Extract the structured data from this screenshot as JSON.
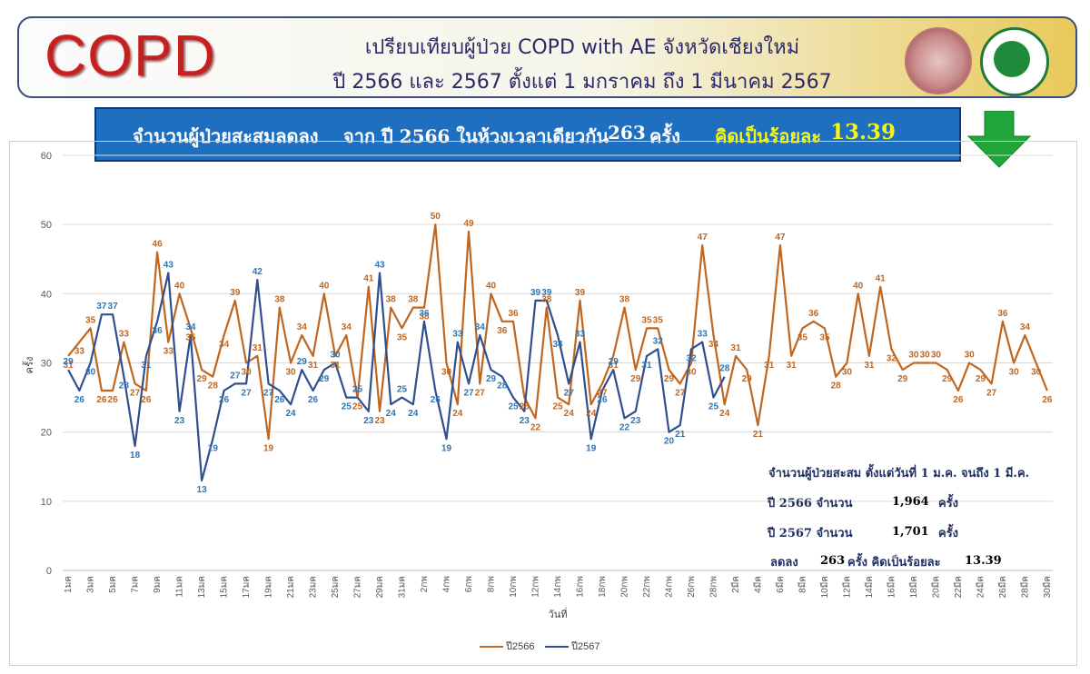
{
  "header": {
    "logo_text": "COPD",
    "title_line1": "เปรียบเทียบผู้ป่วย COPD with AE จังหวัดเชียงใหม่",
    "title_line2": "ปี 2566 และ 2567 ตั้งแต่ 1 มกราคม ถึง 1 มีนาคม 2567",
    "logo1_icon": "provincial-seal-icon",
    "logo2_icon": "ministry-of-public-health-icon"
  },
  "banner": {
    "part1": "จำนวนผู้ป่วยสะสมลดลง",
    "part2": "จาก ปี 2566 ในห้วงเวลาเดียวกัน",
    "count": "263",
    "unit": "ครั้ง",
    "part3": "คิดเป็นร้อยละ",
    "percent": "13.39",
    "arrow_icon": "green-down-arrow-icon",
    "arrow_color": "#1fa53a"
  },
  "summary": {
    "heading": "จำนวนผู้ป่วยสะสม ตั้งแต่วันที่ 1 ม.ค. จนถึง 1 มี.ค.",
    "row1_label": "ปี 2566 จำนวน",
    "row1_value": "1,964",
    "row1_unit": "ครั้ง",
    "row2_label": "ปี 2567 จำนวน",
    "row2_value": "1,701",
    "row2_unit": "ครั้ง",
    "row3_label": "ลดลง",
    "row3_value": "263",
    "row3_text": "ครั้ง คิดเป็นร้อยละ",
    "row3_percent": "13.39"
  },
  "chart_data": {
    "type": "line",
    "xlabel": "วันที่",
    "ylabel": "ครั้ง",
    "ylim": [
      0,
      60
    ],
    "yticks": [
      0,
      10,
      20,
      30,
      40,
      50,
      60
    ],
    "grid": true,
    "legend_position": "bottom",
    "tick_labels": [
      "1มค",
      "3มค",
      "5มค",
      "7มค",
      "9มค",
      "11มค",
      "13มค",
      "15มค",
      "17มค",
      "19มค",
      "21มค",
      "23มค",
      "25มค",
      "27มค",
      "29มค",
      "31มค",
      "2กพ",
      "4กพ",
      "6กพ",
      "8กพ",
      "10กพ",
      "12กพ",
      "14กพ",
      "16กพ",
      "18กพ",
      "20กพ",
      "22กพ",
      "24กพ",
      "26กพ",
      "28กพ",
      "2มีค",
      "4มีค",
      "6มีค",
      "8มีค",
      "10มีค",
      "12มีค",
      "14มีค",
      "16มีค",
      "18มีค",
      "20มีค",
      "22มีค",
      "24มีค",
      "26มีค",
      "28มีค",
      "30มีค"
    ],
    "series": [
      {
        "name": "ปี2566",
        "color": "#c0661f",
        "values": [
          31,
          33,
          35,
          26,
          26,
          33,
          27,
          26,
          46,
          33,
          40,
          35,
          29,
          28,
          34,
          39,
          30,
          31,
          19,
          38,
          30,
          34,
          31,
          40,
          31,
          34,
          25,
          41,
          23,
          38,
          35,
          38,
          38,
          50,
          30,
          24,
          49,
          27,
          40,
          36,
          36,
          25,
          22,
          38,
          25,
          24,
          39,
          24,
          27,
          31,
          38,
          29,
          35,
          35,
          29,
          27,
          30,
          47,
          34,
          24,
          31,
          29,
          21,
          31,
          47,
          31,
          35,
          36,
          35,
          28,
          30,
          40,
          31,
          41,
          32,
          29,
          30,
          30,
          30,
          29,
          26,
          30,
          29,
          27,
          36,
          30,
          34,
          30,
          26
        ]
      },
      {
        "name": "ปี2567",
        "color": "#2f4f8f",
        "values": [
          29,
          26,
          30,
          37,
          37,
          28,
          18,
          31,
          36,
          43,
          23,
          34,
          13,
          19,
          26,
          27,
          27,
          42,
          27,
          26,
          24,
          29,
          26,
          29,
          30,
          25,
          25,
          23,
          43,
          24,
          25,
          24,
          36,
          26,
          19,
          33,
          27,
          34,
          29,
          28,
          25,
          23,
          39,
          39,
          34,
          27,
          33,
          19,
          26,
          29,
          22,
          23,
          31,
          32,
          20,
          21,
          32,
          33,
          25,
          28
        ]
      }
    ]
  },
  "legend": {
    "item1": "ปี2566",
    "item2": "ปี2567"
  }
}
